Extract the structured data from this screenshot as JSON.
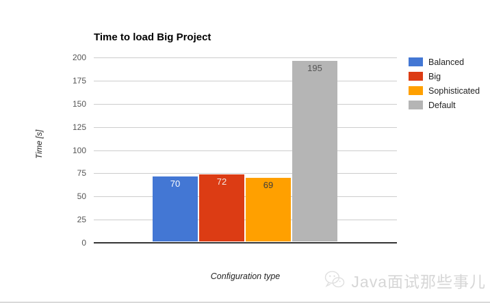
{
  "chart_data": {
    "type": "bar",
    "title": "Time to load Big Project",
    "xlabel": "Configuration type",
    "ylabel": "Time [s]",
    "ylim": [
      0,
      200
    ],
    "yticks": [
      0,
      25,
      50,
      75,
      100,
      125,
      150,
      175,
      200
    ],
    "grid": true,
    "legend_position": "right",
    "series": [
      {
        "name": "Balanced",
        "value": 70,
        "color": "#4377d4",
        "label_color": "#ffffff"
      },
      {
        "name": "Big",
        "value": 72,
        "color": "#dc3c14",
        "label_color": "#f4e9e4"
      },
      {
        "name": "Sophisticated",
        "value": 69,
        "color": "#ffa000",
        "label_color": "#3c3c3c"
      },
      {
        "name": "Default",
        "value": 195,
        "color": "#b5b5b5",
        "label_color": "#555555"
      }
    ],
    "bar_value_labels": [
      "70",
      "72",
      "69",
      "195"
    ]
  },
  "header": {
    "title": "Time to load Big Project"
  },
  "axes": {
    "y_title": "Time [s]",
    "x_title": "Configuration type",
    "y_tick_labels": [
      "0",
      "25",
      "50",
      "75",
      "100",
      "125",
      "150",
      "175",
      "200"
    ]
  },
  "legend": {
    "items": [
      {
        "label": "Balanced",
        "color": "#4377d4"
      },
      {
        "label": "Big",
        "color": "#dc3c14"
      },
      {
        "label": "Sophisticated",
        "color": "#ffa000"
      },
      {
        "label": "Default",
        "color": "#b5b5b5"
      }
    ]
  },
  "watermark": {
    "text": "Java面试那些事儿",
    "icon": "wechat-logo-icon",
    "color": "#d6d6d6"
  },
  "colors": {
    "gridline": "#cccccc",
    "axis_line": "#333333",
    "tick_label": "#555555",
    "background": "#ffffff"
  }
}
